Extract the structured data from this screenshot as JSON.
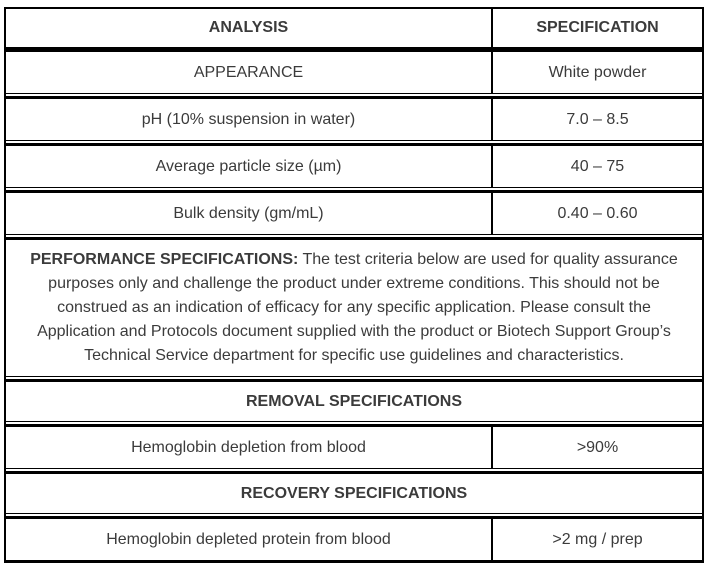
{
  "table": {
    "colors": {
      "border": "#000000",
      "text": "#3b3b3b",
      "background": "#ffffff"
    },
    "header": {
      "analysis": "ANALYSIS",
      "specification": "SPECIFICATION"
    },
    "spec_rows": [
      {
        "analysis": "APPEARANCE",
        "specification": "White powder"
      },
      {
        "analysis": "pH (10% suspension in water)",
        "specification": "7.0 – 8.5"
      },
      {
        "analysis": "Average particle size (µm)",
        "specification": "40 – 75"
      },
      {
        "analysis": "Bulk density (gm/mL)",
        "specification": "0.40 – 0.60"
      }
    ],
    "performance_note": {
      "label": "PERFORMANCE SPECIFICATIONS:",
      "text": " The test criteria below are used for quality assurance purposes only and challenge the product under extreme conditions. This should not be construed as an indication of efficacy for any specific application. Please consult the Application and Protocols document supplied with the product or Biotech Support Group’s Technical Service department for specific use guidelines and characteristics."
    },
    "removal": {
      "section_title": "REMOVAL SPECIFICATIONS",
      "row": {
        "analysis": "Hemoglobin depletion from blood",
        "specification": ">90%"
      }
    },
    "recovery": {
      "section_title": "RECOVERY SPECIFICATIONS",
      "row": {
        "analysis": "Hemoglobin depleted protein from blood",
        "specification": ">2 mg / prep"
      }
    }
  }
}
